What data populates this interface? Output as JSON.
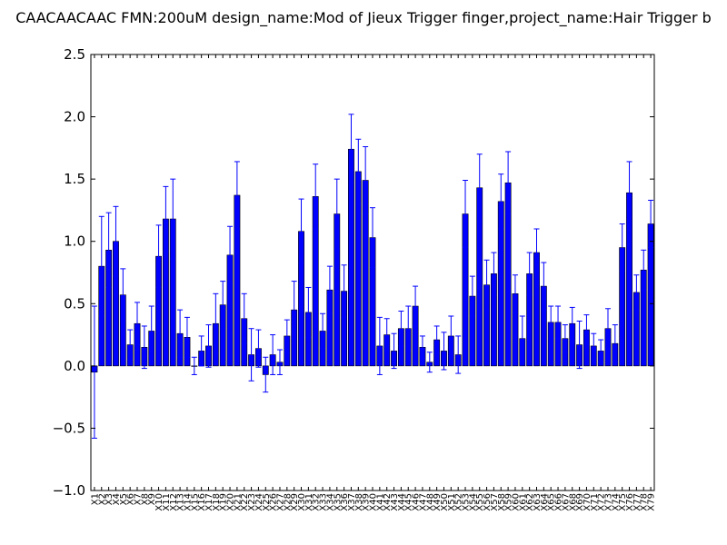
{
  "chart_data": {
    "type": "bar",
    "title": "CAACAACAAC  FMN:200uM  design_name:Mod of Jieux Trigger finger,project_name:Hair Trigger b",
    "xlabel": "",
    "ylabel": "",
    "ylim": [
      -1.0,
      2.5
    ],
    "yticks": [
      -1.0,
      -0.5,
      0.0,
      0.5,
      1.0,
      1.5,
      2.0,
      2.5
    ],
    "ytick_labels": [
      "−1.0",
      "−0.5",
      "0.0",
      "0.5",
      "1.0",
      "1.5",
      "2.0",
      "2.5"
    ],
    "grid": false,
    "bar_color": "#0000ff",
    "errorbar_color": "#0000ff",
    "categories": [
      "X1",
      "X2",
      "X3",
      "X4",
      "X5",
      "X6",
      "X7",
      "X8",
      "X9",
      "X10",
      "X11",
      "X12",
      "X13",
      "X14",
      "X15",
      "X16",
      "X17",
      "X18",
      "X19",
      "X20",
      "X21",
      "X22",
      "X23",
      "X24",
      "X25",
      "X26",
      "X27",
      "X28",
      "X29",
      "X30",
      "X31",
      "X32",
      "X33",
      "X34",
      "X35",
      "X36",
      "X37",
      "X38",
      "X39",
      "X40",
      "X41",
      "X42",
      "X43",
      "X44",
      "X45",
      "X46",
      "X47",
      "X48",
      "X49",
      "X50",
      "X51",
      "X52",
      "X53",
      "X54",
      "X55",
      "X56",
      "X57",
      "X58",
      "X59",
      "X60",
      "X61",
      "X62",
      "X63",
      "X64",
      "X65",
      "X66",
      "X67",
      "X68",
      "X69",
      "X70",
      "X71",
      "X72",
      "X73",
      "X74",
      "X75",
      "X76",
      "X77",
      "X78",
      "X79"
    ],
    "values": [
      -0.05,
      0.8,
      0.93,
      1.0,
      0.57,
      0.17,
      0.34,
      0.15,
      0.28,
      0.88,
      1.18,
      1.18,
      0.26,
      0.23,
      0.0,
      0.12,
      0.16,
      0.34,
      0.49,
      0.89,
      1.37,
      0.38,
      0.09,
      0.14,
      -0.07,
      0.09,
      0.03,
      0.24,
      0.45,
      1.08,
      0.43,
      1.36,
      0.28,
      0.61,
      1.22,
      0.6,
      1.74,
      1.56,
      1.49,
      1.03,
      0.16,
      0.25,
      0.12,
      0.3,
      0.3,
      0.48,
      0.15,
      0.03,
      0.21,
      0.12,
      0.24,
      0.09,
      1.22,
      0.56,
      1.43,
      0.65,
      0.74,
      1.32,
      1.47,
      0.58,
      0.22,
      0.74,
      0.91,
      0.64,
      0.35,
      0.35,
      0.22,
      0.34,
      0.17,
      0.29,
      0.16,
      0.12,
      0.3,
      0.18,
      0.95,
      1.39,
      0.59,
      0.77,
      1.14
    ],
    "errors": [
      0.53,
      0.4,
      0.3,
      0.28,
      0.21,
      0.12,
      0.17,
      0.17,
      0.2,
      0.25,
      0.26,
      0.32,
      0.19,
      0.16,
      0.07,
      0.12,
      0.17,
      0.24,
      0.19,
      0.23,
      0.27,
      0.2,
      0.21,
      0.15,
      0.14,
      0.16,
      0.1,
      0.13,
      0.23,
      0.26,
      0.2,
      0.26,
      0.14,
      0.19,
      0.28,
      0.21,
      0.28,
      0.26,
      0.27,
      0.24,
      0.23,
      0.13,
      0.14,
      0.14,
      0.18,
      0.16,
      0.09,
      0.08,
      0.11,
      0.15,
      0.16,
      0.15,
      0.27,
      0.16,
      0.27,
      0.2,
      0.17,
      0.22,
      0.25,
      0.15,
      0.18,
      0.17,
      0.19,
      0.19,
      0.13,
      0.13,
      0.11,
      0.13,
      0.19,
      0.12,
      0.1,
      0.09,
      0.16,
      0.15,
      0.19,
      0.25,
      0.14,
      0.16,
      0.19
    ]
  }
}
